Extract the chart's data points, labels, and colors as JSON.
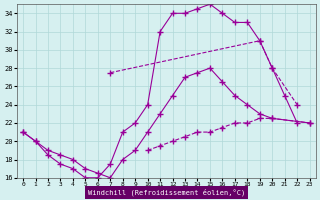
{
  "xlabel": "Windchill (Refroidissement éolien,°C)",
  "bg_color": "#d6f0f0",
  "line_color": "#990099",
  "grid_color": "#b0d8d8",
  "xmin": -0.5,
  "xmax": 23.5,
  "ymin": 16,
  "ymax": 35,
  "yticks": [
    16,
    18,
    20,
    22,
    24,
    26,
    28,
    30,
    32,
    34
  ],
  "xticks": [
    0,
    1,
    2,
    3,
    4,
    5,
    6,
    7,
    8,
    9,
    10,
    11,
    12,
    13,
    14,
    15,
    16,
    17,
    18,
    19,
    20,
    21,
    22,
    23
  ],
  "line1_x": [
    0,
    1,
    2,
    3,
    4,
    5,
    6,
    7,
    8,
    9,
    10,
    11,
    12,
    13,
    14,
    15,
    16,
    17,
    18,
    19,
    20,
    21,
    22
  ],
  "line1_y": [
    21,
    20,
    18.5,
    17.5,
    17,
    16,
    16,
    17.5,
    21,
    22,
    24,
    32,
    34,
    34,
    34.5,
    35,
    34,
    33,
    33,
    31,
    28,
    25,
    22
  ],
  "line2_x": [
    7,
    19,
    20,
    22
  ],
  "line2_y": [
    27.5,
    31,
    28,
    24
  ],
  "line3_x": [
    0,
    1,
    2,
    3,
    4,
    5,
    6,
    7,
    8,
    9,
    10,
    11,
    12,
    13,
    14,
    15,
    16,
    17,
    18,
    19,
    20,
    23
  ],
  "line3_y": [
    21,
    20,
    19,
    18.5,
    18,
    17,
    16.5,
    16,
    18,
    19,
    21,
    23,
    25,
    27,
    27.5,
    28,
    26.5,
    25,
    24,
    23,
    22.5,
    22
  ],
  "line4_x": [
    10,
    11,
    12,
    13,
    14,
    15,
    16,
    17,
    18,
    19,
    20,
    23
  ],
  "line4_y": [
    19,
    19.5,
    20,
    20.5,
    21,
    21,
    21.5,
    22,
    22,
    22.5,
    22.5,
    22
  ]
}
